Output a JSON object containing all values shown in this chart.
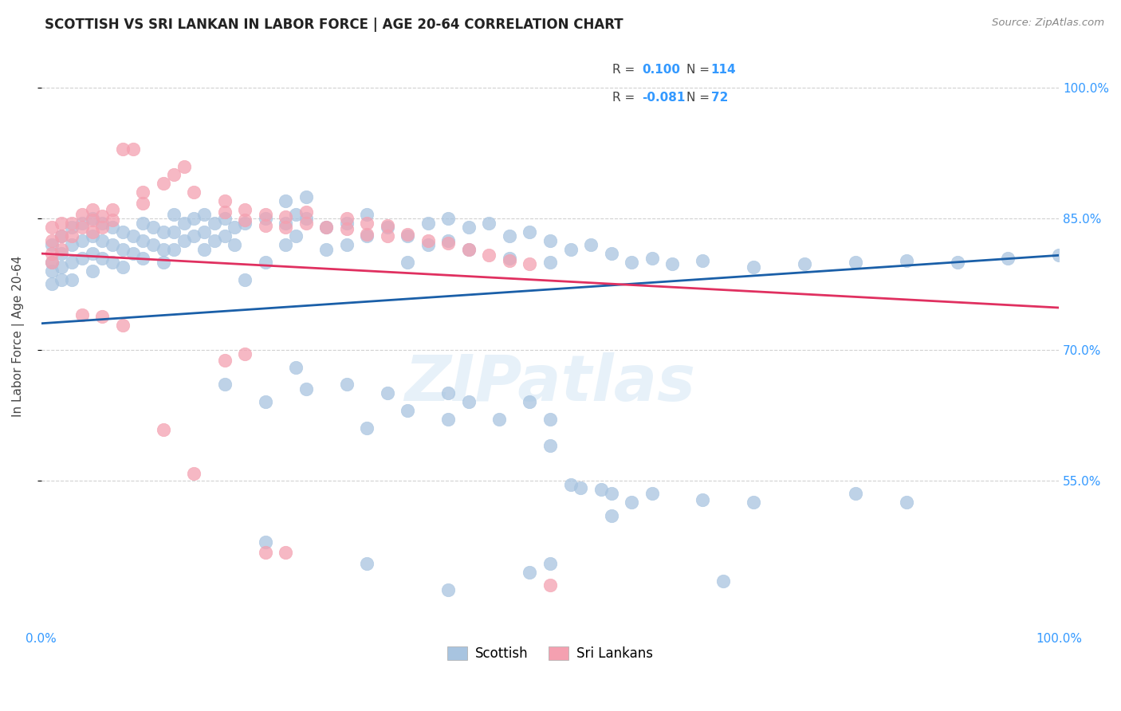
{
  "title": "SCOTTISH VS SRI LANKAN IN LABOR FORCE | AGE 20-64 CORRELATION CHART",
  "source": "Source: ZipAtlas.com",
  "ylabel": "In Labor Force | Age 20-64",
  "xlim": [
    0.0,
    1.0
  ],
  "ylim": [
    0.38,
    1.05
  ],
  "yticks": [
    0.55,
    0.7,
    0.85,
    1.0
  ],
  "ytick_labels": [
    "55.0%",
    "70.0%",
    "85.0%",
    "100.0%"
  ],
  "scottish_color": "#a8c4e0",
  "sri_lankan_color": "#f4a0b0",
  "trend_scottish_color": "#1a5fa8",
  "trend_sri_lankan_color": "#e03060",
  "watermark": "ZIPatlas",
  "scottish_trend_start_x": 0.0,
  "scottish_trend_start_y": 0.73,
  "scottish_trend_end_x": 1.0,
  "scottish_trend_end_y": 0.808,
  "sri_lankan_trend_start_x": 0.0,
  "sri_lankan_trend_start_y": 0.81,
  "sri_lankan_trend_end_x": 1.0,
  "sri_lankan_trend_end_y": 0.748,
  "scottish_points": [
    [
      0.01,
      0.82
    ],
    [
      0.01,
      0.8
    ],
    [
      0.01,
      0.79
    ],
    [
      0.01,
      0.775
    ],
    [
      0.02,
      0.83
    ],
    [
      0.02,
      0.81
    ],
    [
      0.02,
      0.795
    ],
    [
      0.02,
      0.78
    ],
    [
      0.03,
      0.84
    ],
    [
      0.03,
      0.82
    ],
    [
      0.03,
      0.8
    ],
    [
      0.03,
      0.78
    ],
    [
      0.04,
      0.845
    ],
    [
      0.04,
      0.825
    ],
    [
      0.04,
      0.805
    ],
    [
      0.05,
      0.85
    ],
    [
      0.05,
      0.83
    ],
    [
      0.05,
      0.81
    ],
    [
      0.05,
      0.79
    ],
    [
      0.06,
      0.845
    ],
    [
      0.06,
      0.825
    ],
    [
      0.06,
      0.805
    ],
    [
      0.07,
      0.84
    ],
    [
      0.07,
      0.82
    ],
    [
      0.07,
      0.8
    ],
    [
      0.08,
      0.835
    ],
    [
      0.08,
      0.815
    ],
    [
      0.08,
      0.795
    ],
    [
      0.09,
      0.83
    ],
    [
      0.09,
      0.81
    ],
    [
      0.1,
      0.845
    ],
    [
      0.1,
      0.825
    ],
    [
      0.1,
      0.805
    ],
    [
      0.11,
      0.84
    ],
    [
      0.11,
      0.82
    ],
    [
      0.12,
      0.835
    ],
    [
      0.12,
      0.815
    ],
    [
      0.12,
      0.8
    ],
    [
      0.13,
      0.855
    ],
    [
      0.13,
      0.835
    ],
    [
      0.13,
      0.815
    ],
    [
      0.14,
      0.845
    ],
    [
      0.14,
      0.825
    ],
    [
      0.15,
      0.85
    ],
    [
      0.15,
      0.83
    ],
    [
      0.16,
      0.855
    ],
    [
      0.16,
      0.835
    ],
    [
      0.16,
      0.815
    ],
    [
      0.17,
      0.845
    ],
    [
      0.17,
      0.825
    ],
    [
      0.18,
      0.85
    ],
    [
      0.18,
      0.83
    ],
    [
      0.19,
      0.84
    ],
    [
      0.19,
      0.82
    ],
    [
      0.2,
      0.845
    ],
    [
      0.2,
      0.78
    ],
    [
      0.22,
      0.85
    ],
    [
      0.22,
      0.8
    ],
    [
      0.24,
      0.87
    ],
    [
      0.24,
      0.845
    ],
    [
      0.24,
      0.82
    ],
    [
      0.25,
      0.855
    ],
    [
      0.25,
      0.83
    ],
    [
      0.26,
      0.875
    ],
    [
      0.26,
      0.85
    ],
    [
      0.28,
      0.84
    ],
    [
      0.28,
      0.815
    ],
    [
      0.3,
      0.845
    ],
    [
      0.3,
      0.82
    ],
    [
      0.32,
      0.855
    ],
    [
      0.32,
      0.83
    ],
    [
      0.34,
      0.84
    ],
    [
      0.36,
      0.83
    ],
    [
      0.36,
      0.8
    ],
    [
      0.38,
      0.845
    ],
    [
      0.38,
      0.82
    ],
    [
      0.4,
      0.85
    ],
    [
      0.4,
      0.825
    ],
    [
      0.42,
      0.84
    ],
    [
      0.42,
      0.815
    ],
    [
      0.44,
      0.845
    ],
    [
      0.46,
      0.83
    ],
    [
      0.46,
      0.805
    ],
    [
      0.48,
      0.835
    ],
    [
      0.5,
      0.825
    ],
    [
      0.5,
      0.8
    ],
    [
      0.52,
      0.815
    ],
    [
      0.54,
      0.82
    ],
    [
      0.56,
      0.81
    ],
    [
      0.58,
      0.8
    ],
    [
      0.6,
      0.805
    ],
    [
      0.62,
      0.798
    ],
    [
      0.65,
      0.802
    ],
    [
      0.7,
      0.795
    ],
    [
      0.75,
      0.798
    ],
    [
      0.8,
      0.8
    ],
    [
      0.85,
      0.802
    ],
    [
      0.9,
      0.8
    ],
    [
      0.95,
      0.805
    ],
    [
      1.0,
      0.808
    ],
    [
      0.18,
      0.66
    ],
    [
      0.22,
      0.64
    ],
    [
      0.25,
      0.68
    ],
    [
      0.26,
      0.655
    ],
    [
      0.3,
      0.66
    ],
    [
      0.32,
      0.61
    ],
    [
      0.34,
      0.65
    ],
    [
      0.36,
      0.63
    ],
    [
      0.4,
      0.65
    ],
    [
      0.4,
      0.62
    ],
    [
      0.42,
      0.64
    ],
    [
      0.45,
      0.62
    ],
    [
      0.48,
      0.64
    ],
    [
      0.5,
      0.62
    ],
    [
      0.5,
      0.59
    ],
    [
      0.52,
      0.545
    ],
    [
      0.53,
      0.542
    ],
    [
      0.55,
      0.54
    ],
    [
      0.56,
      0.535
    ],
    [
      0.56,
      0.51
    ],
    [
      0.58,
      0.525
    ],
    [
      0.6,
      0.535
    ],
    [
      0.65,
      0.528
    ],
    [
      0.7,
      0.525
    ],
    [
      0.8,
      0.535
    ],
    [
      0.85,
      0.525
    ],
    [
      0.22,
      0.48
    ],
    [
      0.32,
      0.455
    ],
    [
      0.4,
      0.425
    ],
    [
      0.5,
      0.455
    ],
    [
      0.48,
      0.445
    ],
    [
      0.67,
      0.435
    ]
  ],
  "sri_lankan_points": [
    [
      0.01,
      0.84
    ],
    [
      0.01,
      0.825
    ],
    [
      0.01,
      0.81
    ],
    [
      0.01,
      0.8
    ],
    [
      0.02,
      0.845
    ],
    [
      0.02,
      0.83
    ],
    [
      0.02,
      0.815
    ],
    [
      0.03,
      0.845
    ],
    [
      0.03,
      0.83
    ],
    [
      0.04,
      0.855
    ],
    [
      0.04,
      0.84
    ],
    [
      0.05,
      0.86
    ],
    [
      0.05,
      0.848
    ],
    [
      0.05,
      0.835
    ],
    [
      0.06,
      0.853
    ],
    [
      0.06,
      0.84
    ],
    [
      0.07,
      0.86
    ],
    [
      0.07,
      0.848
    ],
    [
      0.08,
      0.93
    ],
    [
      0.09,
      0.93
    ],
    [
      0.1,
      0.88
    ],
    [
      0.1,
      0.868
    ],
    [
      0.12,
      0.89
    ],
    [
      0.13,
      0.9
    ],
    [
      0.14,
      0.91
    ],
    [
      0.15,
      0.88
    ],
    [
      0.18,
      0.87
    ],
    [
      0.18,
      0.858
    ],
    [
      0.2,
      0.86
    ],
    [
      0.2,
      0.848
    ],
    [
      0.22,
      0.855
    ],
    [
      0.22,
      0.842
    ],
    [
      0.24,
      0.852
    ],
    [
      0.24,
      0.84
    ],
    [
      0.26,
      0.858
    ],
    [
      0.26,
      0.845
    ],
    [
      0.28,
      0.84
    ],
    [
      0.3,
      0.85
    ],
    [
      0.3,
      0.838
    ],
    [
      0.32,
      0.845
    ],
    [
      0.32,
      0.832
    ],
    [
      0.34,
      0.842
    ],
    [
      0.34,
      0.83
    ],
    [
      0.36,
      0.832
    ],
    [
      0.38,
      0.825
    ],
    [
      0.4,
      0.822
    ],
    [
      0.42,
      0.815
    ],
    [
      0.44,
      0.808
    ],
    [
      0.46,
      0.802
    ],
    [
      0.48,
      0.798
    ],
    [
      0.04,
      0.74
    ],
    [
      0.06,
      0.738
    ],
    [
      0.08,
      0.728
    ],
    [
      0.18,
      0.688
    ],
    [
      0.2,
      0.695
    ],
    [
      0.12,
      0.608
    ],
    [
      0.15,
      0.558
    ],
    [
      0.22,
      0.468
    ],
    [
      0.24,
      0.468
    ],
    [
      0.5,
      0.43
    ]
  ]
}
